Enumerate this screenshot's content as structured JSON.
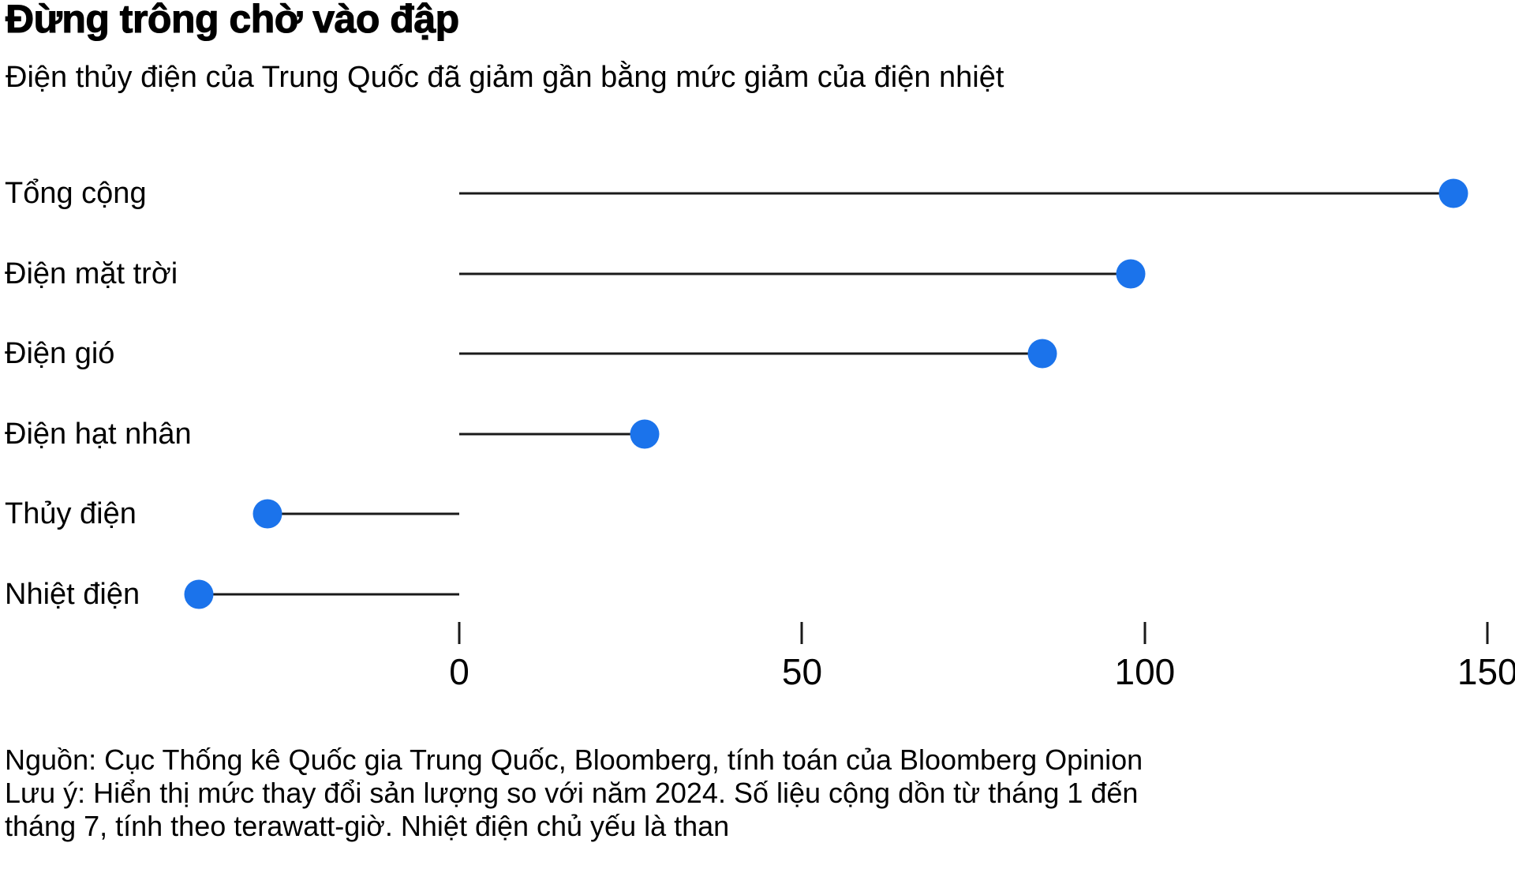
{
  "header": {
    "title": "Đừng trông chờ vào đập",
    "subtitle": "Điện thủy điện của Trung Quốc đã giảm gần bằng mức giảm của điện nhiệt"
  },
  "chart_data": {
    "type": "lollipop",
    "orientation": "horizontal",
    "categories": [
      "Tổng cộng",
      "Điện mặt trời",
      "Điện gió",
      "Điện hạt nhân",
      "Thủy điện",
      "Nhiệt điện"
    ],
    "values": [
      145,
      98,
      85,
      27,
      -28,
      -38
    ],
    "unit": "terawatt-giờ",
    "x_ticks": [
      0,
      50,
      100,
      150
    ],
    "xlim": [
      -67,
      154
    ],
    "baseline": 0,
    "grid": false,
    "legend": "none",
    "dot_color": "#1b73eb",
    "stem_color": "#1a1a1a",
    "text_color": "#000000"
  },
  "footer": {
    "lines": [
      "Nguồn: Cục Thống kê Quốc gia Trung Quốc, Bloomberg, tính toán của Bloomberg Opinion",
      "Lưu ý: Hiển thị mức thay đổi sản lượng so với năm 2024. Số liệu cộng dồn từ tháng 1 đến",
      "tháng 7, tính theo terawatt-giờ. Nhiệt điện chủ yếu là than"
    ]
  }
}
